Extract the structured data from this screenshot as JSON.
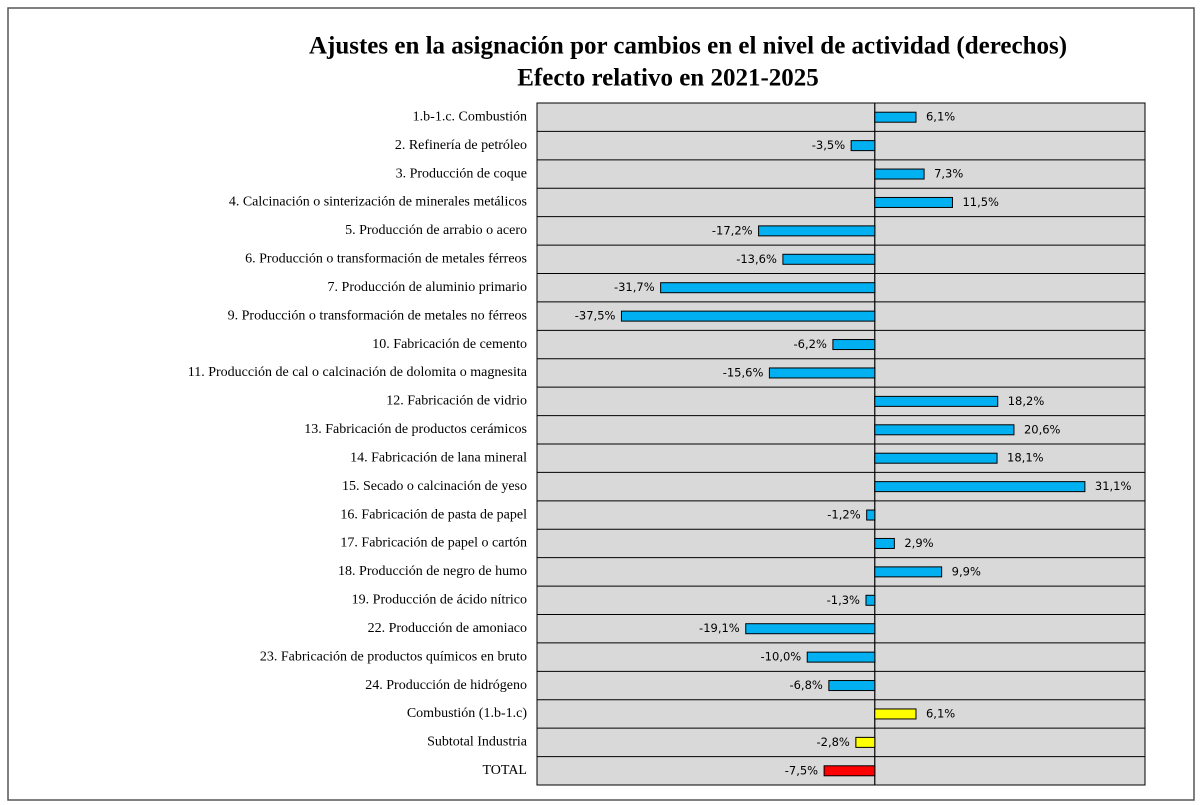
{
  "chart_data": {
    "type": "bar",
    "orientation": "horizontal",
    "title": "Ajustes en la asignación por cambios en el nivel de actividad (derechos)",
    "subtitle": "Efecto relativo en 2021-2025",
    "categories": [
      "1.b-1.c. Combustión",
      "2. Refinería de petróleo",
      "3. Producción de coque",
      "4. Calcinación o sinterización de minerales metálicos",
      "5. Producción de arrabio o acero",
      "6. Producción o transformación de metales férreos",
      "7. Producción de aluminio primario",
      "9. Producción o transformación de metales no férreos",
      "10. Fabricación de cemento",
      "11. Producción de cal o calcinación de dolomita o magnesita",
      "12. Fabricación de vidrio",
      "13. Fabricación de productos cerámicos",
      "14. Fabricación de lana mineral",
      "15. Secado o calcinación de yeso",
      "16. Fabricación de pasta de papel",
      "17. Fabricación de papel o cartón",
      "18. Producción de negro de humo",
      "19. Producción de ácido nítrico",
      "22. Producción de amoniaco",
      "23. Fabricación de productos químicos en bruto",
      "24. Producción de hidrógeno",
      "Combustión (1.b-1.c)",
      "Subtotal Industria",
      "TOTAL"
    ],
    "values": [
      6.1,
      -3.5,
      7.3,
      11.5,
      -17.2,
      -13.6,
      -31.7,
      -37.5,
      -6.2,
      -15.6,
      18.2,
      20.6,
      18.1,
      31.1,
      -1.2,
      2.9,
      9.9,
      -1.3,
      -19.1,
      -10.0,
      -6.8,
      6.1,
      -2.8,
      -7.5
    ],
    "value_labels": [
      "6,1%",
      "-3,5%",
      "7,3%",
      "11,5%",
      "-17,2%",
      "-13,6%",
      "-31,7%",
      "-37,5%",
      "-6,2%",
      "-15,6%",
      "18,2%",
      "20,6%",
      "18,1%",
      "31,1%",
      "-1,2%",
      "2,9%",
      "9,9%",
      "-1,3%",
      "-19,1%",
      "-10,0%",
      "-6,8%",
      "6,1%",
      "-2,8%",
      "-7,5%"
    ],
    "colors": [
      "#00b0f0",
      "#00b0f0",
      "#00b0f0",
      "#00b0f0",
      "#00b0f0",
      "#00b0f0",
      "#00b0f0",
      "#00b0f0",
      "#00b0f0",
      "#00b0f0",
      "#00b0f0",
      "#00b0f0",
      "#00b0f0",
      "#00b0f0",
      "#00b0f0",
      "#00b0f0",
      "#00b0f0",
      "#00b0f0",
      "#00b0f0",
      "#00b0f0",
      "#00b0f0",
      "#ffff00",
      "#ffff00",
      "#ff0000"
    ],
    "xlim": [
      -50,
      40
    ]
  }
}
